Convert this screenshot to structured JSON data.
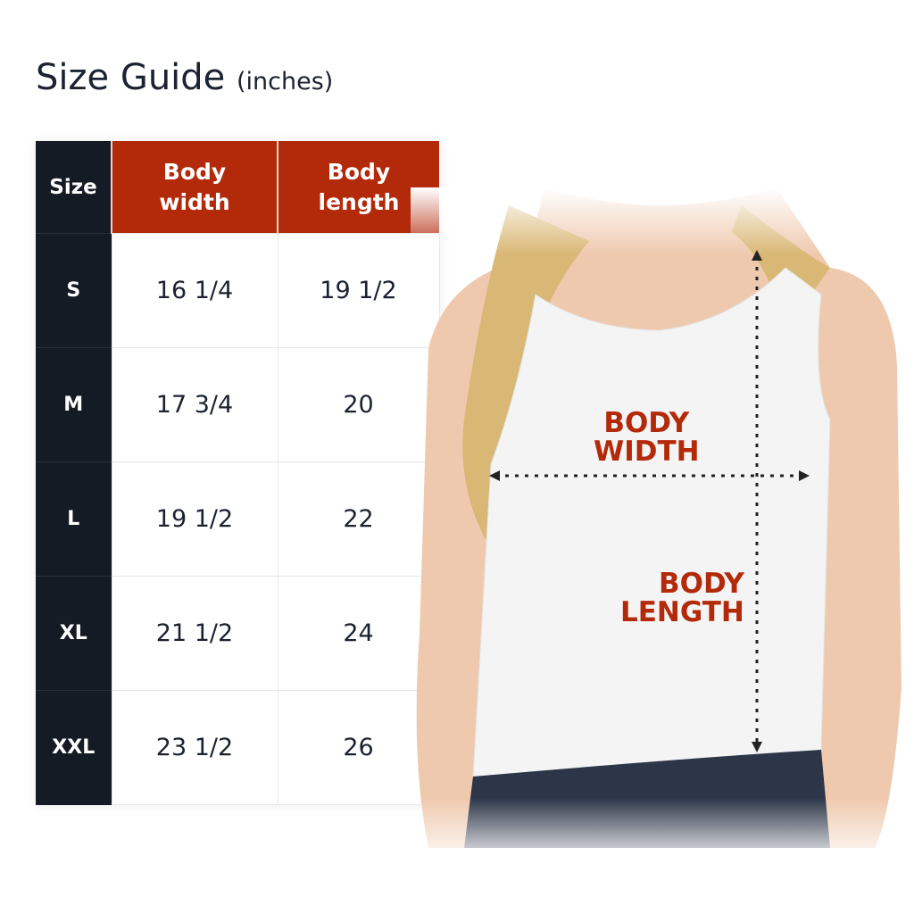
{
  "title": {
    "main": "Size Guide",
    "unit": "(inches)"
  },
  "table": {
    "headers": [
      "Size",
      "Body\nwidth",
      "Body\nlength"
    ],
    "rows": [
      {
        "size": "S",
        "width": "16 1/4",
        "length": "19 1/2"
      },
      {
        "size": "M",
        "width": "17 3/4",
        "length": "20"
      },
      {
        "size": "L",
        "width": "19 1/2",
        "length": "22"
      },
      {
        "size": "XL",
        "width": "21 1/2",
        "length": "24"
      },
      {
        "size": "XXL",
        "width": "23 1/2",
        "length": "26"
      }
    ]
  },
  "figure": {
    "width_label_1": "BODY",
    "width_label_2": "WIDTH",
    "length_label_1": "BODY",
    "length_label_2": "LENGTH"
  },
  "colors": {
    "accent": "#b32a0b",
    "dark": "#151b25",
    "text": "#1b2230"
  }
}
